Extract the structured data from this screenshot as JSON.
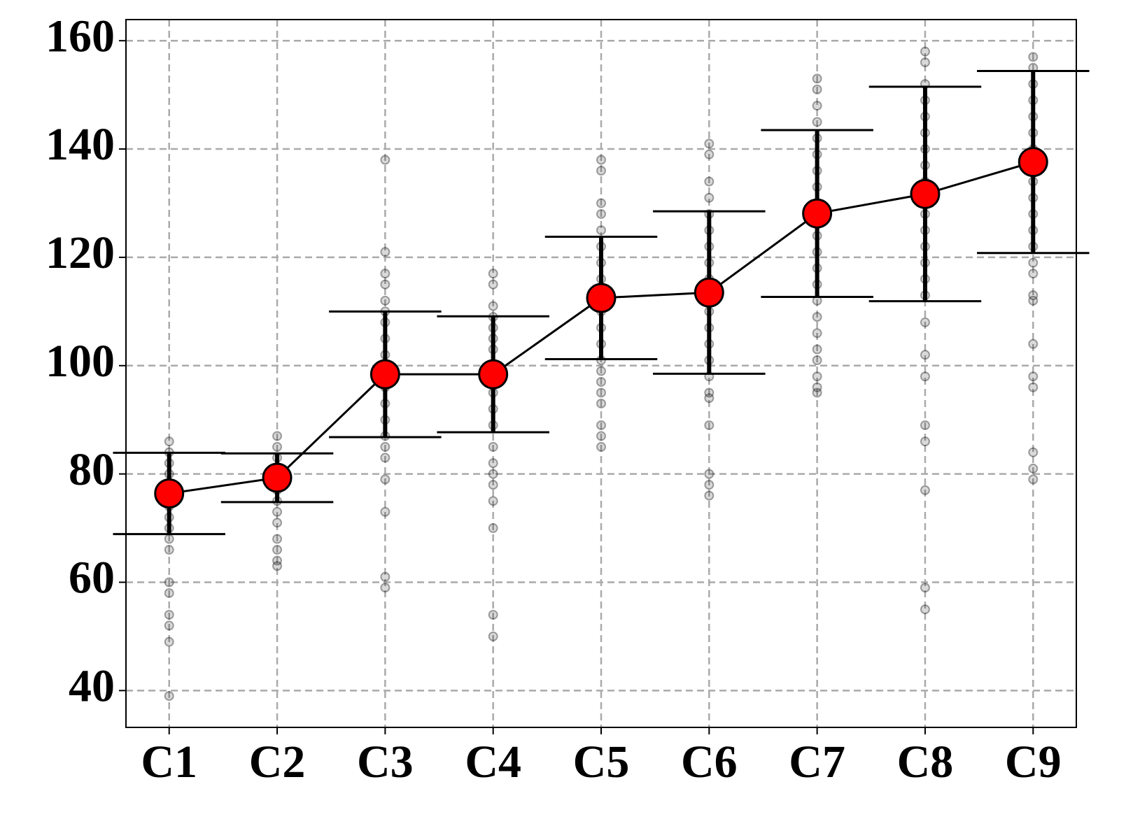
{
  "chart_data": {
    "type": "errorbar",
    "categories": [
      "C1",
      "C2",
      "C3",
      "C4",
      "C5",
      "C6",
      "C7",
      "C8",
      "C9"
    ],
    "values": [
      76.4,
      79.3,
      98.4,
      98.4,
      112.5,
      113.5,
      128.1,
      131.7,
      137.6
    ],
    "errors": [
      7.5,
      4.5,
      11.6,
      10.7,
      11.3,
      15.0,
      15.4,
      19.8,
      16.8
    ],
    "samples": [
      [
        86,
        84,
        82,
        80,
        78,
        76,
        74,
        72,
        70,
        68,
        66,
        60,
        58,
        54,
        52,
        49,
        39
      ],
      [
        87,
        85,
        83,
        81,
        79,
        77,
        75,
        73,
        71,
        68,
        66,
        64,
        63
      ],
      [
        138,
        121,
        117,
        115,
        112,
        110,
        108,
        105,
        102,
        99,
        96,
        93,
        90,
        87,
        85,
        83,
        79,
        73,
        61,
        59
      ],
      [
        117,
        115,
        111,
        109,
        107,
        105,
        103,
        100,
        97,
        95,
        92,
        89,
        85,
        82,
        80,
        78,
        75,
        70,
        54,
        50
      ],
      [
        138,
        136,
        130,
        128,
        125,
        122,
        119,
        116,
        113,
        110,
        107,
        104,
        101,
        99,
        97,
        95,
        93,
        89,
        87,
        85
      ],
      [
        141,
        139,
        134,
        131,
        128,
        125,
        122,
        119,
        116,
        113,
        110,
        107,
        104,
        101,
        98,
        95,
        94,
        89,
        80,
        78,
        76
      ],
      [
        153,
        151,
        148,
        145,
        142,
        139,
        136,
        133,
        130,
        127,
        124,
        121,
        118,
        115,
        112,
        109,
        106,
        103,
        101,
        98,
        96,
        95
      ],
      [
        158,
        156,
        152,
        149,
        146,
        143,
        140,
        137,
        134,
        131,
        128,
        125,
        122,
        119,
        116,
        113,
        108,
        102,
        98,
        89,
        86,
        77,
        59,
        55
      ],
      [
        157,
        155,
        152,
        149,
        146,
        143,
        140,
        137,
        134,
        131,
        128,
        125,
        122,
        119,
        117,
        113,
        112,
        104,
        98,
        96,
        84,
        81,
        79
      ]
    ],
    "color": "#ff0000",
    "line_color": "#000000",
    "sample_color": "#000000",
    "ylim": [
      33.2,
      163.9
    ],
    "yticks": [
      40,
      60,
      80,
      100,
      120,
      140,
      160
    ],
    "grid": true
  }
}
